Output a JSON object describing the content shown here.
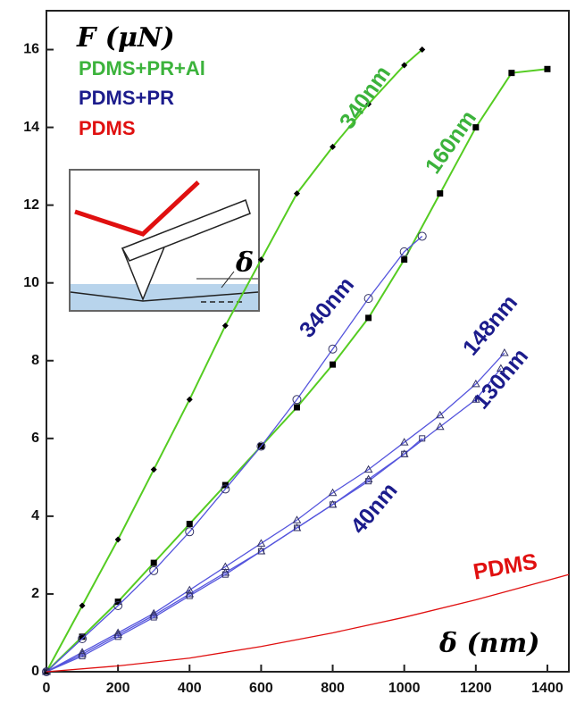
{
  "chart_data": {
    "type": "line",
    "y_label": "F (μN)",
    "x_label": "δ (nm)",
    "xlim": [
      0,
      1460
    ],
    "ylim": [
      0,
      17
    ],
    "xticks": [
      0,
      200,
      400,
      600,
      800,
      1000,
      1200,
      1400
    ],
    "yticks": [
      0,
      2,
      4,
      6,
      8,
      10,
      12,
      14,
      16
    ],
    "legend": [
      {
        "label": "PDMS+PR+Al",
        "color": "#3cb33c"
      },
      {
        "label": "PDMS+PR",
        "color": "#1c1c8c"
      },
      {
        "label": "PDMS",
        "color": "#e01010"
      }
    ],
    "series": [
      {
        "name": "340nm",
        "color": "#55cc22",
        "label_color": "#3cb33c",
        "marker": "diamond",
        "marker_color": "#000000",
        "x": [
          0,
          100,
          200,
          300,
          400,
          500,
          600,
          700,
          800,
          900,
          1000,
          1050
        ],
        "values": [
          0,
          1.7,
          3.4,
          5.2,
          7.0,
          8.9,
          10.6,
          12.3,
          13.5,
          14.6,
          15.6,
          16.0
        ]
      },
      {
        "name": "160nm",
        "color": "#55cc22",
        "label_color": "#3cb33c",
        "marker": "square",
        "marker_color": "#000000",
        "x": [
          0,
          100,
          200,
          300,
          400,
          500,
          600,
          700,
          800,
          900,
          1000,
          1100,
          1200,
          1300,
          1400
        ],
        "values": [
          0,
          0.9,
          1.8,
          2.8,
          3.8,
          4.8,
          5.8,
          6.8,
          7.9,
          9.1,
          10.6,
          12.3,
          14.0,
          15.4,
          15.5
        ]
      },
      {
        "name": "340nm",
        "color": "#5555dd",
        "label_color": "#1c1c8c",
        "marker": "circle",
        "marker_color": "#333366",
        "x": [
          0,
          100,
          200,
          300,
          400,
          500,
          600,
          700,
          800,
          900,
          1000,
          1050
        ],
        "values": [
          0,
          0.85,
          1.7,
          2.6,
          3.6,
          4.7,
          5.8,
          7.0,
          8.3,
          9.6,
          10.8,
          11.2
        ]
      },
      {
        "name": "148nm",
        "color": "#5555dd",
        "label_color": "#1c1c8c",
        "marker": "triangle",
        "marker_color": "#333366",
        "x": [
          0,
          100,
          200,
          300,
          400,
          500,
          600,
          700,
          800,
          900,
          1000,
          1100,
          1200,
          1280
        ],
        "values": [
          0,
          0.5,
          1.0,
          1.5,
          2.1,
          2.7,
          3.3,
          3.9,
          4.6,
          5.2,
          5.9,
          6.6,
          7.4,
          8.2
        ]
      },
      {
        "name": "130nm",
        "color": "#5555dd",
        "label_color": "#1c1c8c",
        "marker": "triangle",
        "marker_color": "#333366",
        "x": [
          0,
          100,
          200,
          300,
          400,
          500,
          600,
          700,
          800,
          900,
          1000,
          1100,
          1200,
          1270
        ],
        "values": [
          0,
          0.45,
          0.95,
          1.45,
          2.0,
          2.55,
          3.1,
          3.7,
          4.3,
          4.95,
          5.6,
          6.3,
          7.0,
          7.8
        ]
      },
      {
        "name": "40nm",
        "color": "#5555dd",
        "label_color": "#1c1c8c",
        "marker": "square",
        "marker_color": "#333366",
        "x": [
          0,
          100,
          200,
          300,
          400,
          500,
          600,
          700,
          800,
          900,
          1000,
          1050
        ],
        "values": [
          0,
          0.4,
          0.9,
          1.4,
          1.95,
          2.5,
          3.1,
          3.7,
          4.3,
          4.9,
          5.6,
          6.0
        ]
      },
      {
        "name": "PDMS",
        "color": "#e01010",
        "label_color": "#e01010",
        "marker": "none",
        "marker_color": "#e01010",
        "x": [
          0,
          200,
          400,
          600,
          800,
          1000,
          1200,
          1400,
          1460
        ],
        "values": [
          0,
          0.15,
          0.35,
          0.65,
          1.0,
          1.4,
          1.85,
          2.35,
          2.5
        ]
      }
    ]
  },
  "inset": {
    "label": "δ"
  }
}
